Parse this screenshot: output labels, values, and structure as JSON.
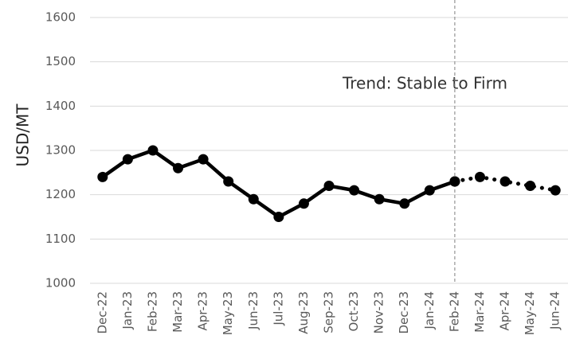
{
  "chart_data": {
    "type": "line",
    "y_label": "USD/MT",
    "annotation": "Trend: Stable to Firm",
    "categories": [
      "Dec-22",
      "Jan-23",
      "Feb-23",
      "Mar-23",
      "Apr-23",
      "May-23",
      "Jun-23",
      "Jul-23",
      "Aug-23",
      "Sep-23",
      "Oct-23",
      "Nov-23",
      "Dec-23",
      "Jan-24",
      "Feb-24",
      "Mar-24",
      "Apr-24",
      "May-24",
      "Jun-24"
    ],
    "series": [
      {
        "color": "#000000",
        "line_style": "solid",
        "values": [
          1240,
          1280,
          1300,
          1260,
          1280,
          1230,
          1190,
          1150,
          1180,
          1220,
          1210,
          1190,
          1180,
          1210,
          1230,
          null,
          null,
          null,
          null
        ]
      },
      {
        "color": "#000000",
        "line_style": "dotted",
        "values": [
          null,
          null,
          null,
          null,
          null,
          null,
          null,
          null,
          null,
          null,
          null,
          null,
          null,
          null,
          1230,
          1240,
          1230,
          1220,
          1210
        ]
      }
    ],
    "ylim": [
      1000,
      1600
    ],
    "yticks": [
      1000,
      1100,
      1200,
      1300,
      1400,
      1500,
      1600
    ],
    "grid": true
  }
}
